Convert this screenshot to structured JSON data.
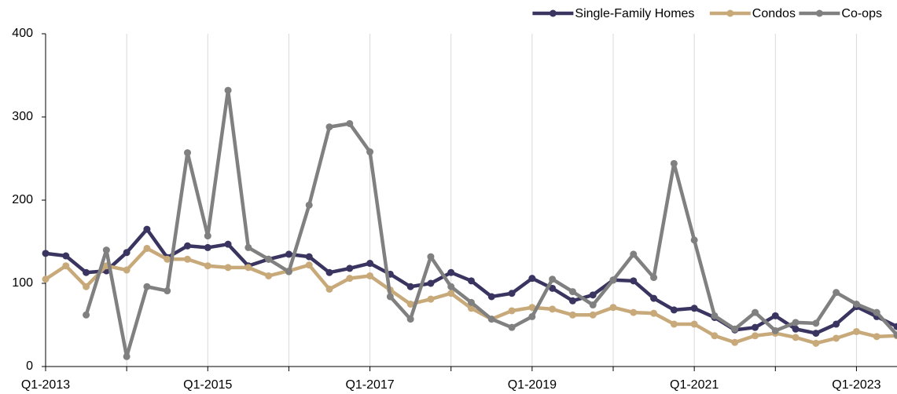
{
  "chart_data": {
    "type": "line",
    "categories": [
      "Q1-2013",
      null,
      null,
      null,
      null,
      null,
      null,
      null,
      "Q1-2015",
      null,
      null,
      null,
      null,
      null,
      null,
      null,
      "Q1-2017",
      null,
      null,
      null,
      null,
      null,
      null,
      null,
      "Q1-2019",
      null,
      null,
      null,
      null,
      null,
      null,
      null,
      "Q1-2021",
      null,
      null,
      null,
      null,
      null,
      null,
      null,
      "Q1-2023",
      null,
      null
    ],
    "series": [
      {
        "name": "Single-Family Homes",
        "color": "#3a3560",
        "values": [
          136,
          133,
          113,
          115,
          137,
          165,
          131,
          145,
          143,
          147,
          121,
          129,
          135,
          132,
          113,
          118,
          124,
          111,
          96,
          100,
          113,
          103,
          84,
          88,
          106,
          94,
          79,
          86,
          104,
          103,
          82,
          68,
          70,
          59,
          44,
          47,
          61,
          45,
          40,
          51,
          72,
          60,
          48
        ]
      },
      {
        "name": "Condos",
        "color": "#c8a97a",
        "values": [
          105,
          121,
          96,
          121,
          116,
          142,
          129,
          129,
          121,
          119,
          119,
          109,
          115,
          122,
          93,
          106,
          109,
          92,
          75,
          81,
          88,
          70,
          57,
          67,
          71,
          69,
          62,
          62,
          71,
          65,
          64,
          51,
          51,
          37,
          29,
          37,
          40,
          35,
          28,
          34,
          42,
          36,
          37
        ]
      },
      {
        "name": "Co-ops",
        "color": "#808080",
        "values": [
          null,
          null,
          62,
          140,
          12,
          96,
          91,
          257,
          157,
          332,
          143,
          129,
          114,
          194,
          288,
          292,
          258,
          84,
          57,
          132,
          96,
          77,
          57,
          47,
          60,
          105,
          90,
          74,
          104,
          135,
          107,
          244,
          152,
          61,
          45,
          65,
          43,
          53,
          52,
          89,
          75,
          65,
          38
        ]
      }
    ],
    "ylim": [
      0,
      400
    ],
    "yticks": [
      0,
      100,
      200,
      300,
      400
    ],
    "legend": "top-right"
  }
}
